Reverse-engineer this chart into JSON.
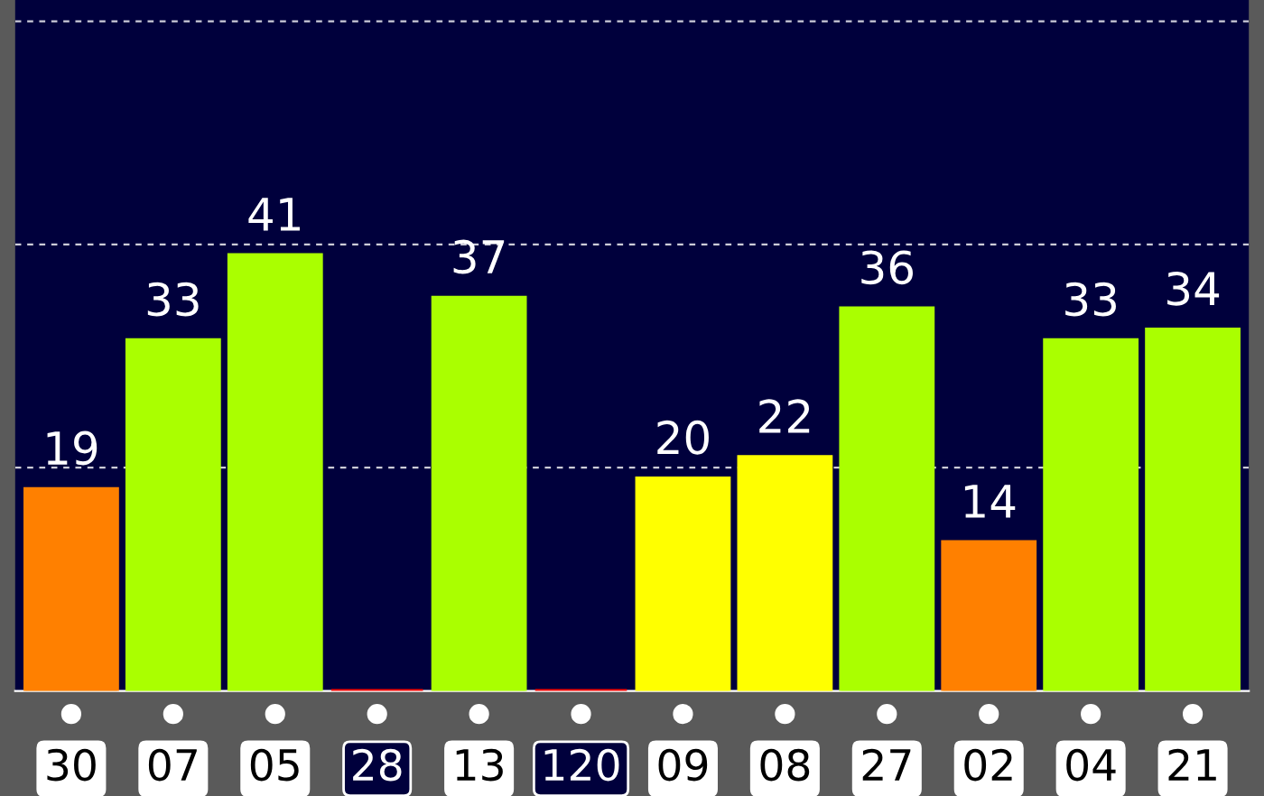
{
  "chart_data": {
    "type": "bar",
    "categories": [
      "30",
      "07",
      "05",
      "28",
      "13",
      "120",
      "09",
      "08",
      "27",
      "02",
      "04",
      "21"
    ],
    "values": [
      19,
      33,
      41,
      0,
      37,
      0,
      20,
      22,
      36,
      14,
      33,
      34
    ],
    "colors": [
      "#ff8000",
      "#aaff00",
      "#aaff00",
      "#ff0000",
      "#aaff00",
      "#ff0000",
      "#ffff00",
      "#ffff00",
      "#aaff00",
      "#ff8000",
      "#aaff00",
      "#aaff00"
    ],
    "value_labels": [
      "19",
      "33",
      "41",
      null,
      "37",
      null,
      "20",
      "22",
      "36",
      "14",
      "33",
      "34"
    ],
    "ylim": [
      0,
      65
    ],
    "yticks": [
      {
        "value": 21,
        "label": null
      },
      {
        "value": 42,
        "label": null
      },
      {
        "value": 63,
        "label": null
      }
    ],
    "grid": "y",
    "tick_labels": "x"
  }
}
